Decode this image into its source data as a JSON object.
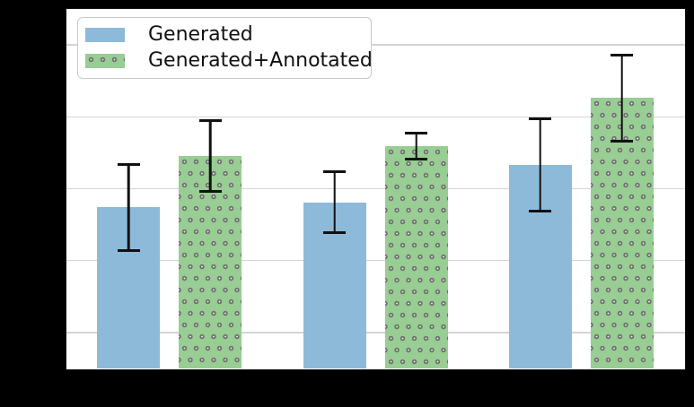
{
  "figure": {
    "background_color": "#000000",
    "plot_background_color": "#ffffff",
    "grid_color": "#d4d4d4",
    "spine_color": "#101010",
    "error_bar_color": "#111111"
  },
  "legend": {
    "items": [
      {
        "label": "Generated",
        "color": "#8ebada",
        "hatch": "none"
      },
      {
        "label": "Generated+Annotated",
        "color": "#98cd93",
        "hatch": "dots"
      }
    ]
  },
  "chart_data": {
    "type": "bar",
    "categories": [
      "",
      "",
      ""
    ],
    "series": [
      {
        "name": "Generated",
        "values": [
          0.774,
          0.781,
          0.833
        ],
        "errors": [
          0.062,
          0.044,
          0.066
        ],
        "color": "#8ebada",
        "hatch": "none"
      },
      {
        "name": "Generated+Annotated",
        "values": [
          0.846,
          0.859,
          0.926
        ],
        "errors": [
          0.051,
          0.02,
          0.062
        ],
        "color": "#98cd93",
        "hatch": "dots"
      }
    ],
    "title": "",
    "xlabel": "",
    "ylabel": "",
    "ylim": [
      0.55,
      1.05
    ],
    "yticks": [
      0.6,
      0.7,
      0.8,
      0.9,
      1.0
    ],
    "grid": true,
    "legend_position": "upper left",
    "tick_labels_visible": false
  }
}
